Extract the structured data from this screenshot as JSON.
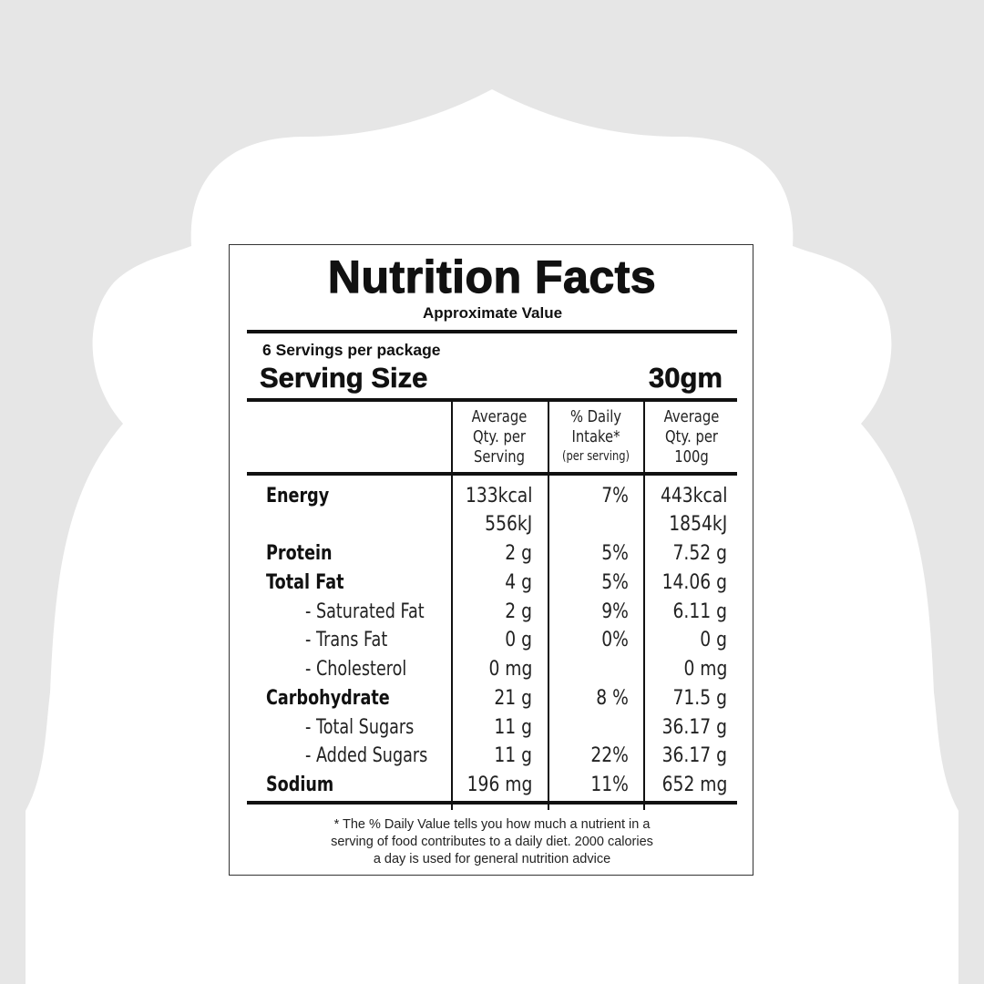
{
  "label": {
    "title": "Nutrition Facts",
    "subtitle": "Approximate Value",
    "servings_per_package": "6 Servings per package",
    "serving_size_label": "Serving Size",
    "serving_size_value": "30gm",
    "columns": {
      "per_serving": [
        "Average",
        "Qty. per",
        "Serving"
      ],
      "daily_intake": [
        "% Daily",
        "Intake*",
        "(per serving)"
      ],
      "per_100g": [
        "Average",
        "Qty. per",
        "100g"
      ]
    },
    "rows": [
      {
        "name": "Energy",
        "per_serving": "133kcal",
        "daily": "7%",
        "per_100g": "443kcal"
      },
      {
        "name": "",
        "per_serving": "556kJ",
        "daily": "",
        "per_100g": "1854kJ"
      },
      {
        "name": "Protein",
        "per_serving": "2 g",
        "daily": "5%",
        "per_100g": "7.52 g"
      },
      {
        "name": "Total Fat",
        "per_serving": "4 g",
        "daily": "5%",
        "per_100g": "14.06 g"
      },
      {
        "name": "- Saturated Fat",
        "per_serving": "2 g",
        "daily": "9%",
        "per_100g": "6.11 g"
      },
      {
        "name": "- Trans Fat",
        "per_serving": "0 g",
        "daily": "0%",
        "per_100g": "0 g"
      },
      {
        "name": "- Cholesterol",
        "per_serving": "0 mg",
        "daily": "",
        "per_100g": "0 mg"
      },
      {
        "name": "Carbohydrate",
        "per_serving": "21 g",
        "daily": "8 %",
        "per_100g": "71.5 g"
      },
      {
        "name": "- Total Sugars",
        "per_serving": "11 g",
        "daily": "",
        "per_100g": "36.17 g"
      },
      {
        "name": "- Added Sugars",
        "per_serving": "11 g",
        "daily": "22%",
        "per_100g": "36.17 g"
      },
      {
        "name": "Sodium",
        "per_serving": "196 mg",
        "daily": "11%",
        "per_100g": "652 mg"
      }
    ],
    "footnote": [
      "* The % Daily Value tells you how much a nutrient in a",
      "serving of food contributes to a daily diet. 2000 calories",
      "a day is used for general nutrition advice"
    ]
  },
  "colors": {
    "background": "#e6e6e6",
    "frame": "#ffffff",
    "ink": "#111111"
  }
}
